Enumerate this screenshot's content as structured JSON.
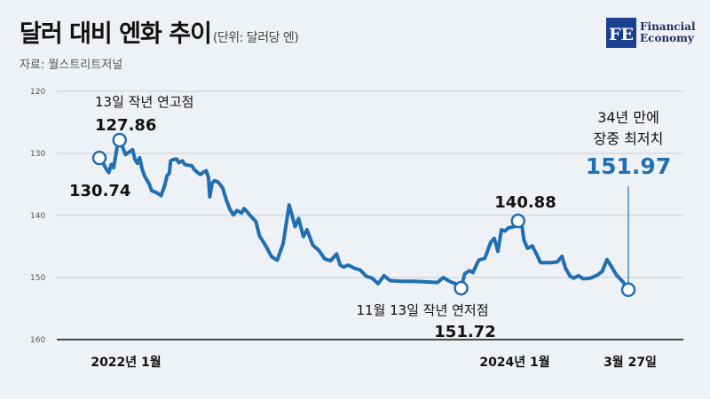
{
  "header": {
    "title": "달러 대비 엔화 추이",
    "unit": "(단위: 달러당 엔)",
    "source": "자료: 월스트리트저널",
    "logo_line1": "Financial",
    "logo_line2": "Economy",
    "logo_letters": "FE"
  },
  "colors": {
    "line": "#1f6fb2",
    "background": "#eef1f5",
    "axis": "#111111",
    "grid": "#c9ced6",
    "highlight": "#1f6fb2"
  },
  "chart_data": {
    "type": "line",
    "yaxis": {
      "inverted": true,
      "ylim": [
        120,
        160
      ],
      "ticks": [
        "120",
        "130",
        "140",
        "150",
        "160"
      ]
    },
    "grid": true,
    "xaxis_labels": [
      "2022년 1월",
      "2024년 1월",
      "3월 27일"
    ],
    "series": [
      {
        "points": [
          [
            0,
            130.74
          ],
          [
            3,
            131.5
          ],
          [
            6,
            132.6
          ],
          [
            8,
            133.1
          ],
          [
            10,
            131.8
          ],
          [
            12,
            132.3
          ],
          [
            15,
            129.0
          ],
          [
            16,
            128.2
          ],
          [
            17,
            127.86
          ],
          [
            20,
            129.2
          ],
          [
            22,
            130.2
          ],
          [
            25,
            129.8
          ],
          [
            28,
            129.4
          ],
          [
            30,
            131.0
          ],
          [
            32,
            131.6
          ],
          [
            34,
            130.7
          ],
          [
            36,
            132.5
          ],
          [
            38,
            133.6
          ],
          [
            40,
            134.3
          ],
          [
            42,
            134.9
          ],
          [
            44,
            136.0
          ],
          [
            48,
            136.3
          ],
          [
            52,
            136.8
          ],
          [
            55,
            135.2
          ],
          [
            57,
            133.6
          ],
          [
            59,
            133.2
          ],
          [
            60,
            131.2
          ],
          [
            62,
            131.0
          ],
          [
            65,
            130.9
          ],
          [
            67,
            131.5
          ],
          [
            70,
            131.2
          ],
          [
            72,
            131.8
          ],
          [
            75,
            131.9
          ],
          [
            78,
            132.0
          ],
          [
            80,
            132.6
          ],
          [
            83,
            133.1
          ],
          [
            85,
            133.4
          ],
          [
            88,
            133.0
          ],
          [
            90,
            132.8
          ],
          [
            92,
            133.9
          ],
          [
            93,
            137.0
          ],
          [
            95,
            134.8
          ],
          [
            97,
            134.4
          ],
          [
            100,
            134.6
          ],
          [
            104,
            135.6
          ],
          [
            107,
            137.5
          ],
          [
            110,
            139.0
          ],
          [
            113,
            139.9
          ],
          [
            116,
            139.2
          ],
          [
            120,
            139.6
          ],
          [
            122,
            138.9
          ],
          [
            125,
            139.5
          ],
          [
            128,
            140.2
          ],
          [
            132,
            141.0
          ],
          [
            135,
            143.3
          ],
          [
            140,
            144.8
          ],
          [
            145,
            146.6
          ],
          [
            148,
            147.0
          ],
          [
            150,
            147.2
          ],
          [
            155,
            144.5
          ],
          [
            160,
            138.3
          ],
          [
            165,
            141.8
          ],
          [
            168,
            140.5
          ],
          [
            172,
            143.4
          ],
          [
            175,
            142.3
          ],
          [
            180,
            144.8
          ],
          [
            185,
            145.6
          ],
          [
            190,
            147.0
          ],
          [
            195,
            147.3
          ],
          [
            200,
            146.2
          ],
          [
            203,
            148.0
          ],
          [
            206,
            148.3
          ],
          [
            210,
            148.0
          ],
          [
            215,
            148.5
          ],
          [
            220,
            148.8
          ],
          [
            225,
            149.8
          ],
          [
            230,
            150.1
          ],
          [
            235,
            151.0
          ],
          [
            240,
            149.7
          ],
          [
            245,
            150.5
          ],
          [
            255,
            150.6
          ],
          [
            265,
            150.6
          ],
          [
            275,
            150.7
          ],
          [
            285,
            150.8
          ],
          [
            290,
            150.0
          ],
          [
            295,
            150.6
          ],
          [
            300,
            151.0
          ],
          [
            305,
            151.72
          ],
          [
            308,
            149.4
          ],
          [
            312,
            148.9
          ],
          [
            315,
            149.2
          ],
          [
            318,
            147.9
          ],
          [
            320,
            147.2
          ],
          [
            325,
            146.9
          ],
          [
            330,
            144.3
          ],
          [
            333,
            143.7
          ],
          [
            336,
            145.8
          ],
          [
            339,
            142.3
          ],
          [
            342,
            142.5
          ],
          [
            345,
            142.0
          ],
          [
            350,
            141.8
          ],
          [
            353,
            140.88
          ],
          [
            356,
            141.3
          ],
          [
            358,
            144.0
          ],
          [
            361,
            145.3
          ],
          [
            365,
            144.9
          ],
          [
            368,
            146.0
          ],
          [
            372,
            147.6
          ],
          [
            380,
            147.6
          ],
          [
            386,
            147.5
          ],
          [
            390,
            146.6
          ],
          [
            393,
            148.5
          ],
          [
            397,
            149.8
          ],
          [
            400,
            150.1
          ],
          [
            404,
            149.7
          ],
          [
            408,
            150.2
          ],
          [
            414,
            150.1
          ],
          [
            420,
            149.6
          ],
          [
            424,
            149.0
          ],
          [
            428,
            147.1
          ],
          [
            432,
            148.3
          ],
          [
            436,
            149.6
          ],
          [
            440,
            150.4
          ],
          [
            444,
            151.3
          ],
          [
            446,
            151.97
          ]
        ]
      }
    ],
    "annotations": [
      {
        "label": "13일 작년 연고점",
        "value": "127.86",
        "x": 17,
        "y": 127.86
      },
      {
        "label": "",
        "value": "130.74",
        "x": 0,
        "y": 130.74
      },
      {
        "label": "11월 13일 작년 연저점",
        "value": "151.72",
        "x": 305,
        "y": 151.72
      },
      {
        "label": "",
        "value": "140.88",
        "x": 353,
        "y": 140.88
      },
      {
        "label_line1": "34년 만에",
        "label_line2": "장중 최저치",
        "value": "151.97",
        "x": 446,
        "y": 151.97
      }
    ]
  }
}
